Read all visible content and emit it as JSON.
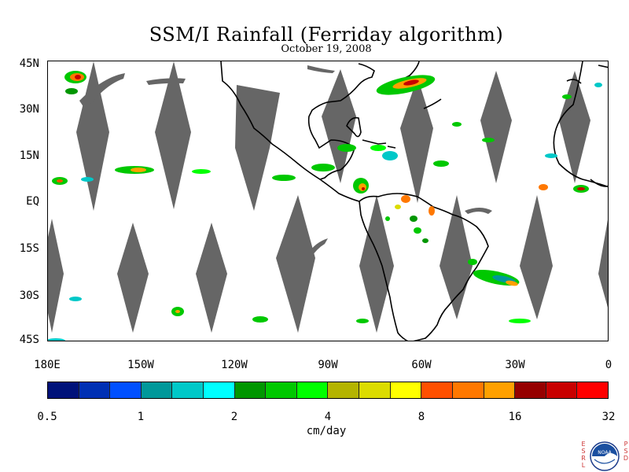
{
  "title": "SSM/I Rainfall (Ferriday algorithm)",
  "date": "October 19, 2008",
  "lat_labels": [
    "45N",
    "30N",
    "15N",
    "EQ",
    "15S",
    "30S",
    "45S"
  ],
  "lon_labels": [
    "180E",
    "150W",
    "120W",
    "90W",
    "60W",
    "30W",
    "0"
  ],
  "colorbar": {
    "colors": [
      "#00127a",
      "#0030b4",
      "#0050ff",
      "#00989a",
      "#00c8c8",
      "#00ffff",
      "#009600",
      "#00c800",
      "#00ff00",
      "#b4b400",
      "#dcdc00",
      "#ffff00",
      "#ff5000",
      "#ff7800",
      "#ffa000",
      "#960000",
      "#c80000",
      "#ff0000"
    ],
    "tick_labels": [
      "0.5",
      "1",
      "2",
      "4",
      "8",
      "16",
      "32"
    ],
    "units": "cm/day"
  },
  "logo": {
    "left_letters": [
      "E",
      "S",
      "R",
      "L"
    ],
    "right_letters": [
      "P",
      "S",
      "D"
    ],
    "center_text": "NOAA"
  }
}
